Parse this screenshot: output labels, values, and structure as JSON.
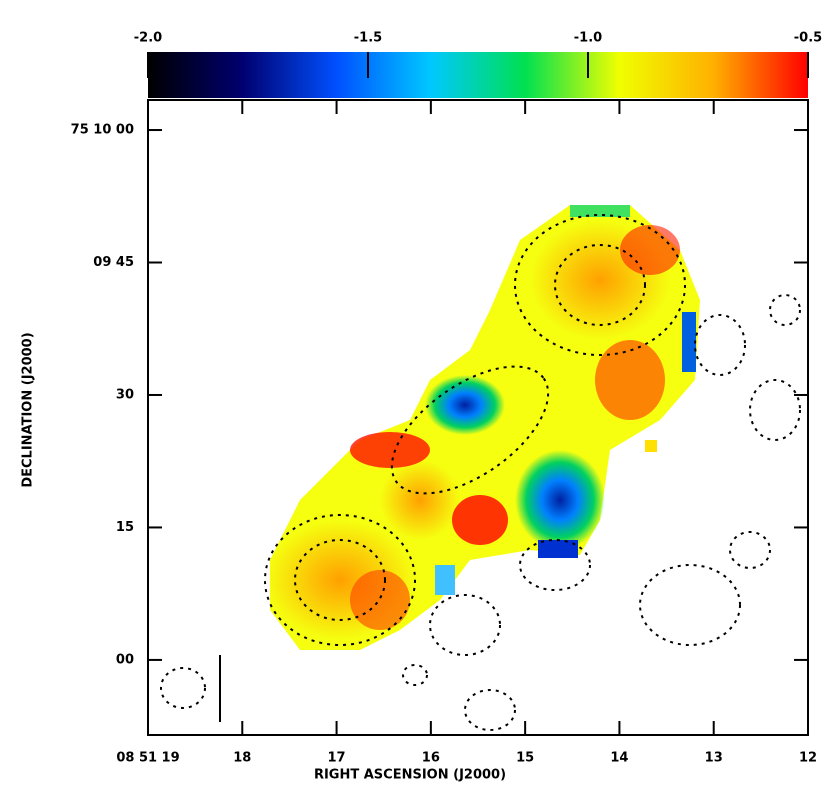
{
  "chart_data": {
    "type": "heatmap",
    "xlabel": "RIGHT ASCENSION (J2000)",
    "ylabel": "DECLINATION (J2000)",
    "xlim": [
      19,
      12
    ],
    "xticks": [
      {
        "value": 19,
        "label": "08 51 19"
      },
      18,
      17,
      16,
      15,
      14,
      13,
      12
    ],
    "ylim": [
      -8.5,
      63.4
    ],
    "yticks": [
      {
        "value": 60,
        "label": "75 10 00"
      },
      {
        "value": 45,
        "label": "09 45"
      },
      30,
      15,
      {
        "value": 0,
        "label": "00"
      }
    ],
    "clim": [
      -2.0,
      -0.5
    ],
    "cticks": [
      {
        "value": -2,
        "label": "-2.0"
      },
      -1.5,
      {
        "value": -1,
        "label": "-1.0"
      },
      -0.5
    ],
    "colormap": [
      "#000000",
      "#000070",
      "#0050ff",
      "#00c8ff",
      "#00e050",
      "#f0ff00",
      "#ffb000",
      "#ff0000"
    ]
  }
}
